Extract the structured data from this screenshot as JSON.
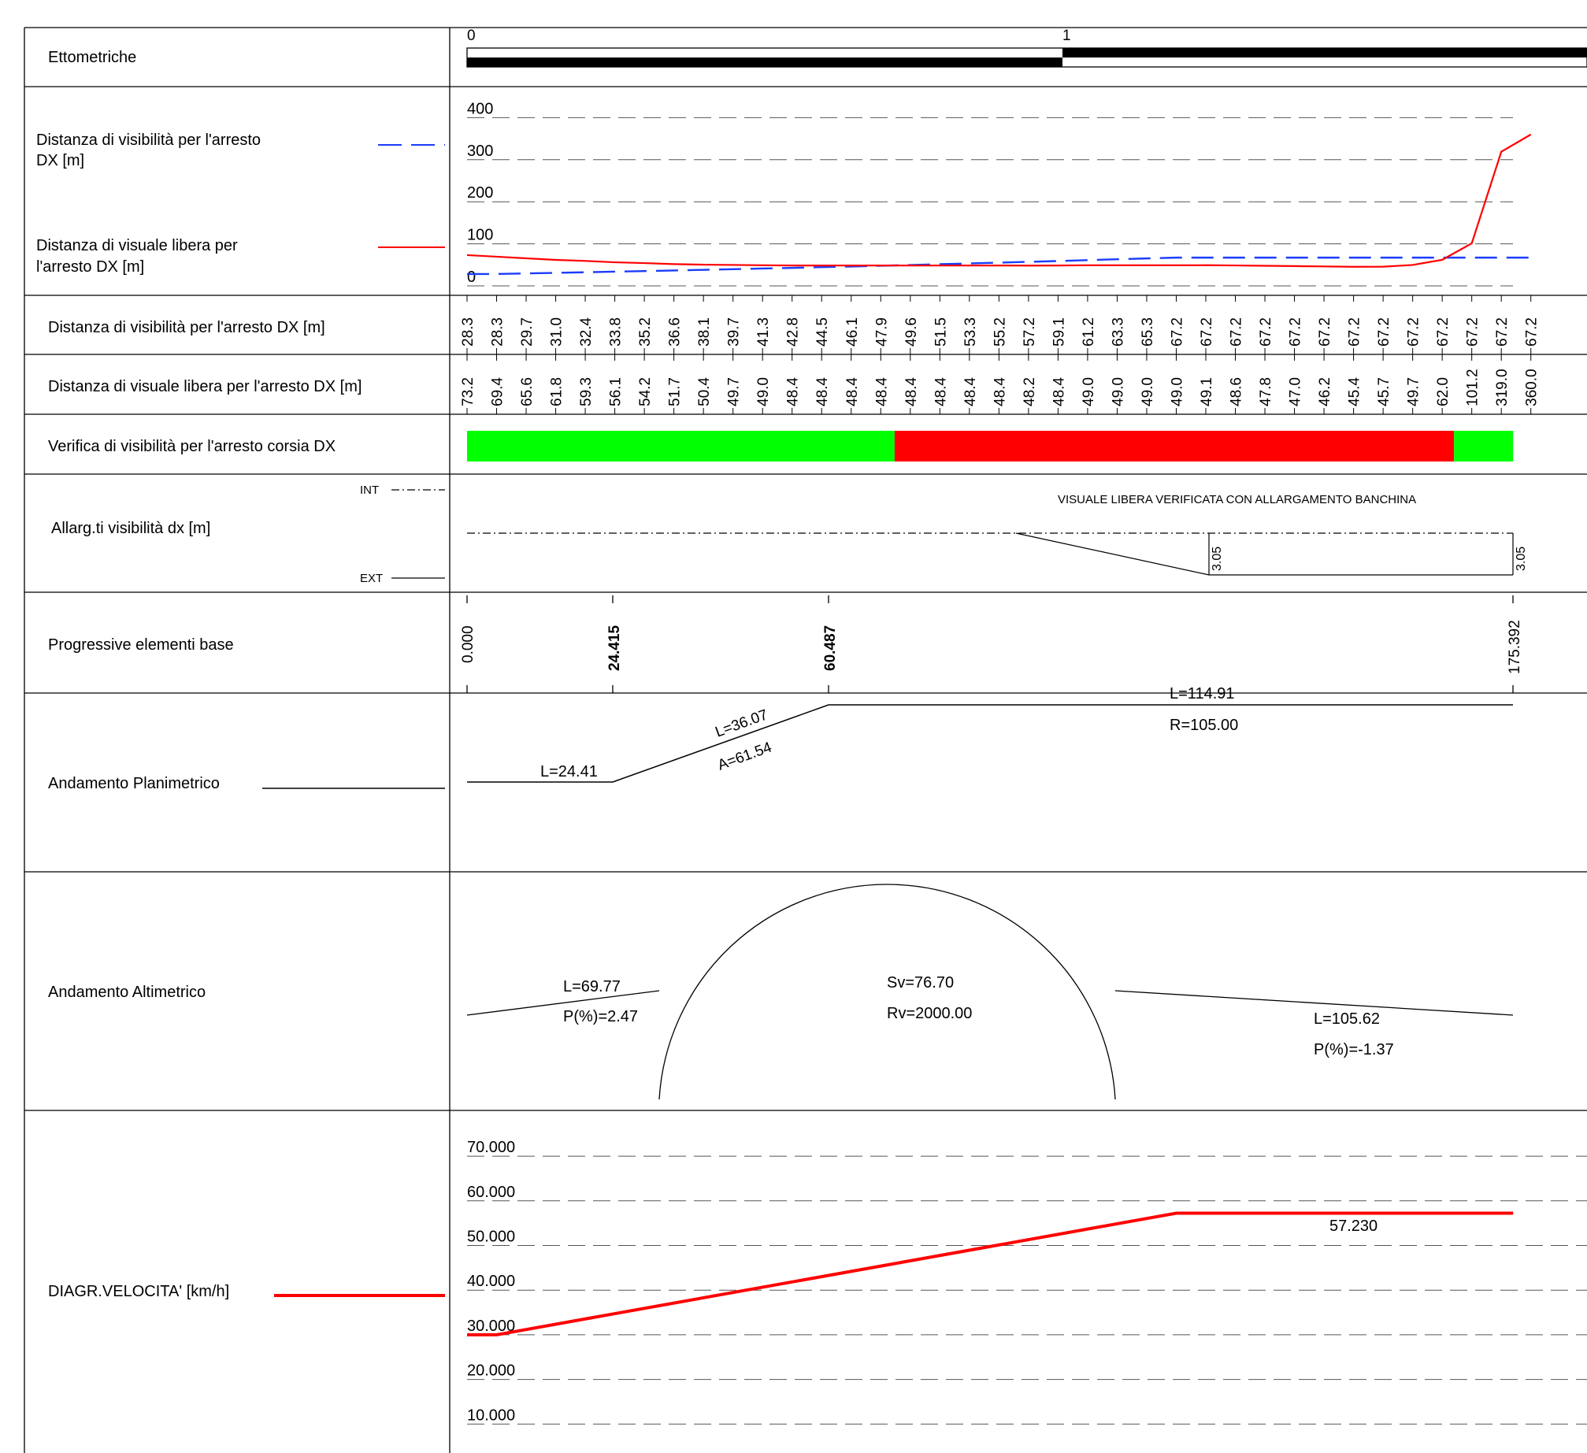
{
  "rows": {
    "ettometriche": {
      "label": "Ettometriche",
      "scale_labels": [
        "0",
        "1"
      ]
    },
    "sight_chart": {
      "legend": [
        {
          "label_lines": [
            "Distanza di visibilità per l'arresto",
            "DX [m]"
          ],
          "color": "#1a3cff",
          "style": "dashed"
        },
        {
          "label_lines": [
            "Distanza di visuale libera per",
            "l'arresto DX [m]"
          ],
          "color": "#ff0000",
          "style": "solid"
        }
      ],
      "y_ticks": [
        "400",
        "300",
        "200",
        "100",
        "0"
      ]
    },
    "stopping_sight": {
      "label": "Distanza di visibilità per l'arresto DX [m]"
    },
    "free_sight": {
      "label": "Distanza di visuale libera per l'arresto DX [m]"
    },
    "verification": {
      "label": "Verifica di visibilità per l'arresto corsia DX",
      "ok_color": "#00ff00",
      "fail_color": "#ff0000"
    },
    "widening": {
      "label": "Allarg.ti visibilità dx [m]",
      "int_label": "INT",
      "ext_label": "EXT",
      "note": "VISUALE LIBERA VERIFICATA CON ALLARGAMENTO BANCHINA",
      "values": [
        "3.05",
        "3.05"
      ]
    },
    "progressive": {
      "label": "Progressive elementi base",
      "values": [
        "0.000",
        "24.415",
        "60.487",
        "175.392"
      ]
    },
    "planimetric": {
      "label": "Andamento Planimetrico",
      "labels": [
        "L=24.41",
        "L=36.07",
        "A=61.54",
        "L=114.91",
        "R=105.00"
      ]
    },
    "altimetric": {
      "label": "Andamento Altimetrico",
      "labels": [
        "L=69.77",
        "P(%)=2.47",
        "Sv=76.70",
        "Rv=2000.00",
        "L=105.62",
        "P(%)=-1.37"
      ]
    },
    "speed": {
      "label": "DIAGR.VELOCITA' [km/h]",
      "color": "#ff0000",
      "y_ticks": [
        "70.000",
        "60.000",
        "50.000",
        "40.000",
        "30.000",
        "20.000",
        "10.000",
        "0.000"
      ],
      "value_label": "57.230"
    }
  },
  "chart_data": {
    "type": "line",
    "x": [
      0,
      10,
      20,
      30,
      40,
      50,
      60,
      70,
      80,
      90,
      100,
      110,
      120,
      130,
      140,
      150,
      160,
      170,
      180,
      190,
      200,
      210,
      220,
      230,
      240,
      250,
      260,
      270,
      280,
      290,
      300,
      310,
      320,
      330,
      340,
      350,
      360
    ],
    "series": [
      {
        "name": "Distanza di visibilità per l'arresto DX [m]",
        "values": [
          28.3,
          28.3,
          29.7,
          31.0,
          32.4,
          33.8,
          35.2,
          36.6,
          38.1,
          39.7,
          41.3,
          42.8,
          44.5,
          46.1,
          47.9,
          49.6,
          51.5,
          53.3,
          55.2,
          57.2,
          59.1,
          61.2,
          63.3,
          65.3,
          67.2,
          67.2,
          67.2,
          67.2,
          67.2,
          67.2,
          67.2,
          67.2,
          67.2,
          67.2,
          67.2,
          67.2,
          67.2
        ]
      },
      {
        "name": "Distanza di visuale libera per l'arresto DX [m]",
        "values": [
          73.2,
          69.4,
          65.6,
          61.8,
          59.3,
          56.1,
          54.2,
          51.7,
          50.4,
          49.7,
          49.0,
          48.4,
          48.4,
          48.4,
          48.4,
          48.4,
          48.4,
          48.4,
          48.4,
          48.2,
          48.4,
          49.0,
          49.0,
          49.0,
          49.0,
          49.1,
          48.6,
          47.8,
          47.0,
          46.2,
          45.4,
          45.7,
          49.7,
          62.0,
          101.2,
          319.0,
          360.0
        ]
      }
    ],
    "ylim": [
      0,
      400
    ],
    "verification_segments": [
      {
        "status": "ok",
        "from": 0,
        "to": 144.7
      },
      {
        "status": "fail",
        "from": 144.7,
        "to": 334
      },
      {
        "status": "ok",
        "from": 334,
        "to": 354
      }
    ],
    "speed": {
      "x": [
        0,
        10,
        240,
        354
      ],
      "values": [
        30.0,
        30.0,
        57.23,
        57.23
      ],
      "ylim": [
        0,
        70
      ]
    }
  }
}
